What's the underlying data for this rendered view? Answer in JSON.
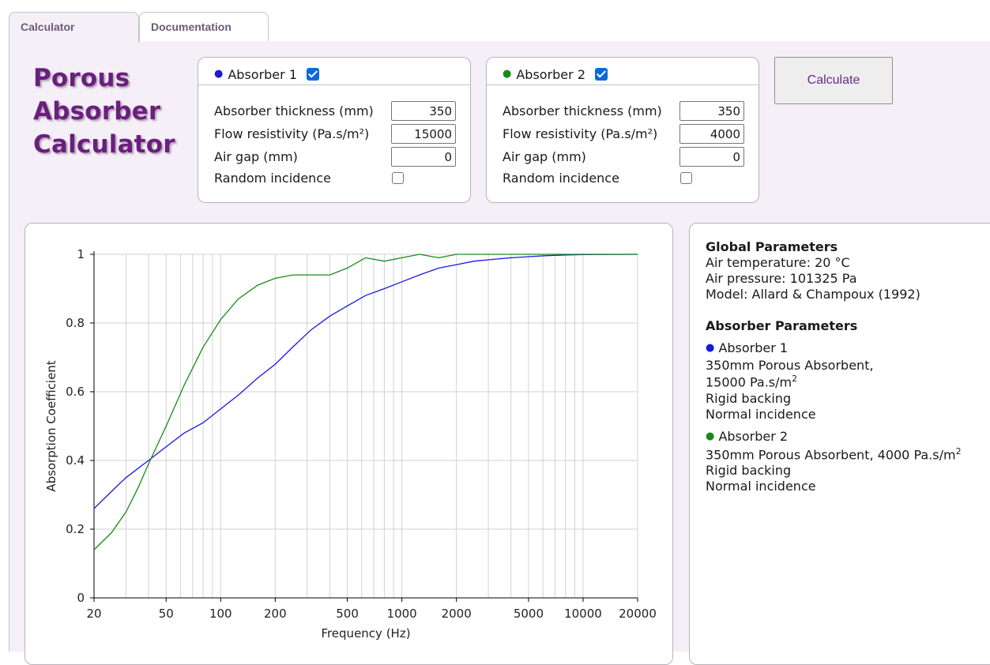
{
  "tabs": [
    {
      "label": "Calculator",
      "active": true
    },
    {
      "label": "Documentation",
      "active": false
    }
  ],
  "logo": {
    "lines": [
      "Porous",
      "Absorber",
      "Calculator"
    ]
  },
  "absorbers": [
    {
      "title": "Absorber 1",
      "enabled": true,
      "color": "#1a1adb",
      "thickness_label": "Absorber thickness (mm)",
      "thickness": "350",
      "flow_label": "Flow resistivity (Pa.s/m²)",
      "flow": "15000",
      "airgap_label": "Air gap (mm)",
      "airgap": "0",
      "random_label": "Random incidence",
      "random": false
    },
    {
      "title": "Absorber 2",
      "enabled": true,
      "color": "#1a8a1a",
      "thickness_label": "Absorber thickness (mm)",
      "thickness": "350",
      "flow_label": "Flow resistivity (Pa.s/m²)",
      "flow": "4000",
      "airgap_label": "Air gap (mm)",
      "airgap": "0",
      "random_label": "Random incidence",
      "random": false
    }
  ],
  "calculate_label": "Calculate",
  "info": {
    "global_title": "Global Parameters",
    "air_temp": "Air temperature: 20 °C",
    "air_pressure": "Air pressure: 101325 Pa",
    "model": "Model: Allard & Champoux (1992)",
    "absorber_title": "Absorber Parameters",
    "a1_name": "Absorber 1",
    "a1_line1": "350mm Porous Absorbent,",
    "a1_line2": "15000 Pa.s/m",
    "a1_backing": "Rigid backing",
    "a1_incidence": "Normal incidence",
    "a2_name": "Absorber 2",
    "a2_line1": "350mm Porous Absorbent, 4000 Pa.s/m",
    "a2_backing": "Rigid backing",
    "a2_incidence": "Normal incidence",
    "sup": "2"
  },
  "chart_data": {
    "type": "line",
    "xlabel": "Frequency (Hz)",
    "ylabel": "Absorption Coefficient",
    "xscale": "log",
    "xlim": [
      20,
      20000
    ],
    "ylim": [
      0,
      1
    ],
    "xticks": [
      20,
      50,
      100,
      200,
      500,
      1000,
      2000,
      5000,
      10000,
      20000
    ],
    "yticks": [
      0,
      0.2,
      0.4,
      0.6,
      0.8,
      1
    ],
    "grid": true,
    "legend": "none",
    "series": [
      {
        "name": "Absorber 1",
        "color": "#1a1adb",
        "x": [
          20,
          25,
          30,
          40,
          50,
          63,
          80,
          100,
          125,
          160,
          200,
          250,
          315,
          400,
          500,
          630,
          800,
          1000,
          1250,
          1600,
          2000,
          2500,
          3150,
          4000,
          5000,
          6300,
          8000,
          10000,
          20000
        ],
        "y": [
          0.26,
          0.31,
          0.35,
          0.4,
          0.44,
          0.48,
          0.51,
          0.55,
          0.59,
          0.64,
          0.68,
          0.73,
          0.78,
          0.82,
          0.85,
          0.88,
          0.9,
          0.92,
          0.94,
          0.96,
          0.97,
          0.98,
          0.985,
          0.99,
          0.993,
          0.996,
          0.998,
          0.999,
          1.0
        ]
      },
      {
        "name": "Absorber 2",
        "color": "#1a8a1a",
        "x": [
          20,
          25,
          30,
          35,
          40,
          50,
          63,
          80,
          100,
          125,
          160,
          200,
          250,
          315,
          400,
          500,
          630,
          800,
          1000,
          1250,
          1600,
          2000,
          2500,
          3150,
          4000,
          5000,
          10000,
          20000
        ],
        "y": [
          0.14,
          0.19,
          0.25,
          0.32,
          0.39,
          0.5,
          0.62,
          0.73,
          0.81,
          0.87,
          0.91,
          0.93,
          0.94,
          0.94,
          0.94,
          0.96,
          0.99,
          0.98,
          0.99,
          1.0,
          0.99,
          1.0,
          1.0,
          1.0,
          1.0,
          1.0,
          1.0,
          1.0
        ]
      }
    ]
  }
}
